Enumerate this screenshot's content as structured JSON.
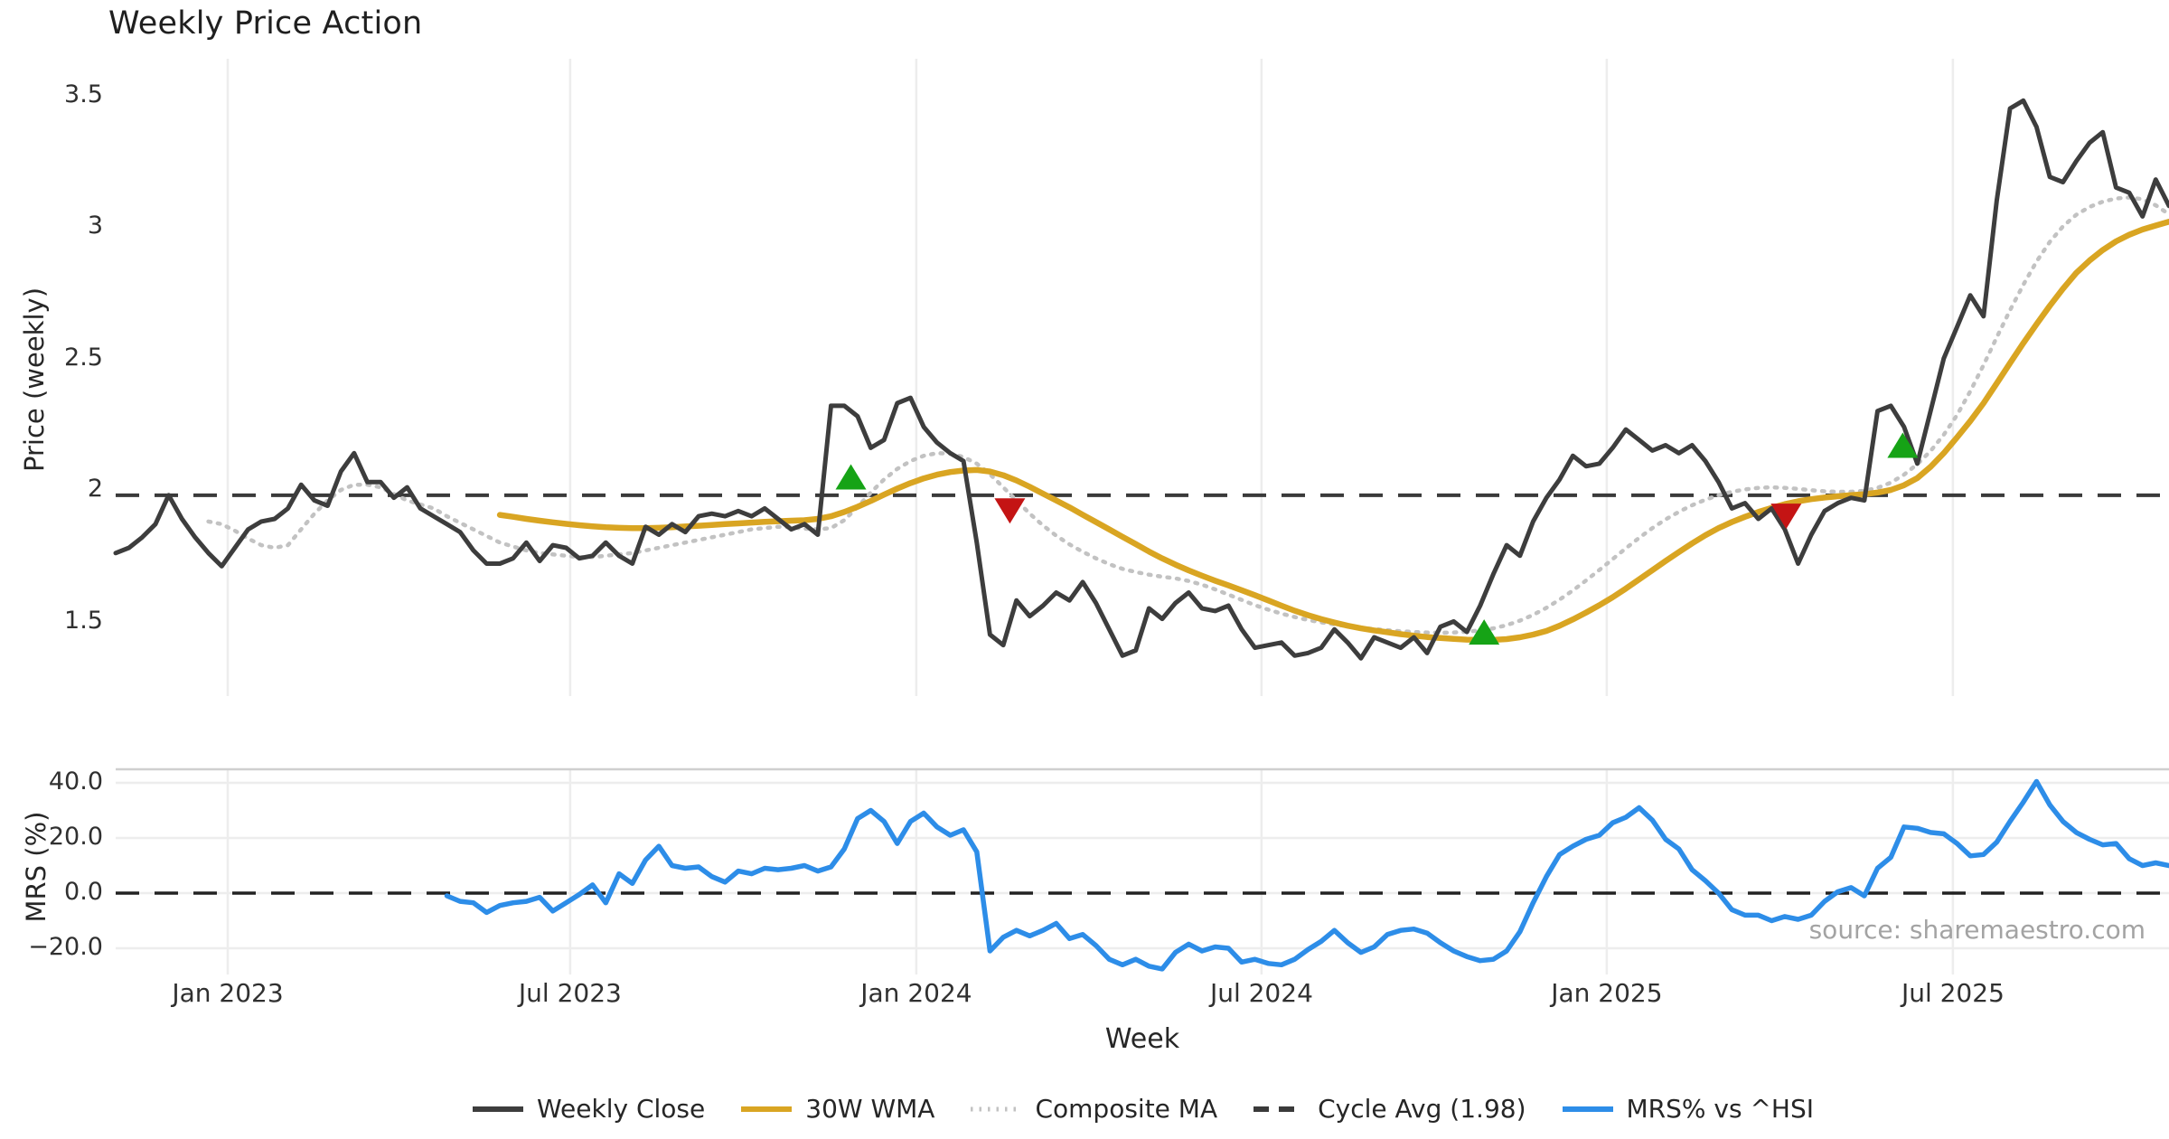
{
  "title": "Weekly Price Action",
  "source_note": "source: sharemaestro.com",
  "colors": {
    "close": "#3d3d3d",
    "wma": "#D9A522",
    "composite": "#c2c2c2",
    "cycle": "#3a3a3a",
    "mrs": "#2D8DE8",
    "buy": "#16A316",
    "sell": "#C41414",
    "grid": "#ededed",
    "panel_border": "#cfcfcf",
    "text": "#262626",
    "muted": "#a3a3a3"
  },
  "legend": [
    {
      "label": "Weekly Close",
      "style": "solid",
      "color": "#3d3d3d"
    },
    {
      "label": "30W WMA",
      "style": "solid",
      "color": "#D9A522"
    },
    {
      "label": "Composite MA",
      "style": "dotted",
      "color": "#c2c2c2"
    },
    {
      "label": "Cycle Avg (1.98)",
      "style": "dashed",
      "color": "#3a3a3a"
    },
    {
      "label": "MRS% vs ^HSI",
      "style": "solid",
      "color": "#2D8DE8"
    }
  ],
  "chart_data": [
    {
      "type": "line",
      "panel": "price",
      "title": "Weekly Price Action",
      "ylabel": "Price (weekly)",
      "ylim": [
        1.2,
        3.6
      ],
      "grid": "vertical-only",
      "cycle_avg": 1.98,
      "yticks": [
        {
          "value": 3.5,
          "label": "3.5"
        },
        {
          "value": 3.0,
          "label": "3"
        },
        {
          "value": 2.5,
          "label": "2.5"
        },
        {
          "value": 2.0,
          "label": "2"
        },
        {
          "value": 1.5,
          "label": "1.5"
        }
      ],
      "series": [
        {
          "name": "Weekly Close",
          "color": "#3d3d3d",
          "start_week": 0,
          "values": [
            1.76,
            1.78,
            1.82,
            1.87,
            1.98,
            1.89,
            1.82,
            1.76,
            1.71,
            1.78,
            1.85,
            1.88,
            1.89,
            1.93,
            2.02,
            1.96,
            1.94,
            2.07,
            2.14,
            2.03,
            2.03,
            1.97,
            2.01,
            1.93,
            1.9,
            1.87,
            1.84,
            1.77,
            1.72,
            1.72,
            1.74,
            1.8,
            1.73,
            1.79,
            1.78,
            1.74,
            1.75,
            1.8,
            1.75,
            1.72,
            1.86,
            1.83,
            1.87,
            1.84,
            1.9,
            1.91,
            1.9,
            1.92,
            1.9,
            1.93,
            1.89,
            1.85,
            1.87,
            1.83,
            2.32,
            2.32,
            2.28,
            2.16,
            2.19,
            2.33,
            2.35,
            2.24,
            2.18,
            2.14,
            2.11,
            1.8,
            1.45,
            1.41,
            1.58,
            1.52,
            1.56,
            1.61,
            1.58,
            1.65,
            1.57,
            1.47,
            1.37,
            1.39,
            1.55,
            1.51,
            1.57,
            1.61,
            1.55,
            1.54,
            1.56,
            1.47,
            1.4,
            1.41,
            1.42,
            1.37,
            1.38,
            1.4,
            1.47,
            1.42,
            1.36,
            1.44,
            1.42,
            1.4,
            1.44,
            1.38,
            1.48,
            1.5,
            1.46,
            1.56,
            1.68,
            1.79,
            1.75,
            1.88,
            1.97,
            2.04,
            2.13,
            2.09,
            2.1,
            2.16,
            2.23,
            2.19,
            2.15,
            2.17,
            2.14,
            2.17,
            2.11,
            2.03,
            1.93,
            1.95,
            1.89,
            1.93,
            1.85,
            1.72,
            1.83,
            1.92,
            1.95,
            1.97,
            1.96,
            2.3,
            2.32,
            2.24,
            2.1,
            2.3,
            2.5,
            2.62,
            2.74,
            2.66,
            3.1,
            3.45,
            3.48,
            3.38,
            3.19,
            3.17,
            3.25,
            3.32,
            3.36,
            3.15,
            3.13,
            3.04,
            3.18,
            3.08
          ]
        },
        {
          "name": "30W WMA",
          "color": "#D9A522",
          "start_week": 29,
          "values": [
            1.905,
            1.898,
            1.89,
            1.883,
            1.877,
            1.871,
            1.866,
            1.862,
            1.858,
            1.856,
            1.855,
            1.855,
            1.856,
            1.858,
            1.861,
            1.864,
            1.867,
            1.87,
            1.873,
            1.876,
            1.879,
            1.881,
            1.883,
            1.885,
            1.89,
            1.9,
            1.916,
            1.936,
            1.958,
            1.982,
            2.005,
            2.026,
            2.044,
            2.058,
            2.068,
            2.074,
            2.076,
            2.07,
            2.056,
            2.036,
            2.012,
            1.986,
            1.96,
            1.934,
            1.906,
            1.878,
            1.85,
            1.822,
            1.794,
            1.766,
            1.74,
            1.716,
            1.694,
            1.674,
            1.655,
            1.637,
            1.619,
            1.6,
            1.58,
            1.56,
            1.541,
            1.524,
            1.509,
            1.496,
            1.484,
            1.474,
            1.466,
            1.459,
            1.452,
            1.446,
            1.441,
            1.437,
            1.434,
            1.431,
            1.43,
            1.43,
            1.433,
            1.44,
            1.45,
            1.464,
            1.484,
            1.508,
            1.534,
            1.562,
            1.592,
            1.625,
            1.66,
            1.695,
            1.73,
            1.764,
            1.797,
            1.828,
            1.855,
            1.878,
            1.898,
            1.916,
            1.932,
            1.946,
            1.957,
            1.965,
            1.971,
            1.976,
            1.98,
            1.984,
            1.99,
            2.0,
            2.018,
            2.045,
            2.088,
            2.14,
            2.2,
            2.262,
            2.33,
            2.405,
            2.482,
            2.558,
            2.63,
            2.7,
            2.765,
            2.825,
            2.872,
            2.912,
            2.945,
            2.97,
            2.99,
            3.005,
            3.02
          ]
        },
        {
          "name": "Composite MA",
          "color": "#c2c2c2",
          "start_week": 7,
          "values": [
            1.88,
            1.87,
            1.845,
            1.815,
            1.79,
            1.78,
            1.79,
            1.85,
            1.91,
            1.96,
            2.0,
            2.02,
            2.02,
            2.01,
            1.985,
            1.96,
            1.945,
            1.93,
            1.9,
            1.875,
            1.85,
            1.825,
            1.8,
            1.785,
            1.77,
            1.76,
            1.755,
            1.75,
            1.745,
            1.745,
            1.75,
            1.755,
            1.76,
            1.77,
            1.78,
            1.79,
            1.8,
            1.81,
            1.82,
            1.83,
            1.84,
            1.85,
            1.855,
            1.86,
            1.858,
            1.853,
            1.85,
            1.855,
            1.885,
            1.935,
            1.99,
            2.04,
            2.08,
            2.11,
            2.13,
            2.14,
            2.138,
            2.125,
            2.1,
            2.06,
            2.01,
            1.96,
            1.91,
            1.865,
            1.826,
            1.793,
            1.765,
            1.74,
            1.718,
            1.7,
            1.688,
            1.678,
            1.67,
            1.664,
            1.654,
            1.64,
            1.622,
            1.602,
            1.582,
            1.562,
            1.545,
            1.53,
            1.517,
            1.506,
            1.497,
            1.489,
            1.482,
            1.476,
            1.471,
            1.467,
            1.463,
            1.46,
            1.458,
            1.457,
            1.458,
            1.461,
            1.466,
            1.474,
            1.486,
            1.503,
            1.525,
            1.552,
            1.583,
            1.618,
            1.656,
            1.696,
            1.737,
            1.778,
            1.818,
            1.855,
            1.888,
            1.917,
            1.942,
            1.963,
            1.98,
            1.993,
            2.002,
            2.008,
            2.01,
            2.008,
            2.004,
            1.999,
            1.995,
            1.993,
            1.993,
            1.997,
            2.008,
            2.028,
            2.058,
            2.098,
            2.148,
            2.21,
            2.285,
            2.375,
            2.475,
            2.58,
            2.683,
            2.78,
            2.868,
            2.943,
            3.002,
            3.046,
            3.076,
            3.096,
            3.108,
            3.112,
            3.105,
            3.082,
            3.048
          ]
        }
      ],
      "signals": {
        "buy": [
          {
            "week": 55.5,
            "value": 2.05
          },
          {
            "week": 103.3,
            "value": 1.46
          },
          {
            "week": 134.9,
            "value": 2.17
          }
        ],
        "sell": [
          {
            "week": 67.5,
            "value": 1.92
          },
          {
            "week": 126.1,
            "value": 1.9
          }
        ]
      }
    },
    {
      "type": "line",
      "panel": "mrs",
      "ylabel": "MRS (%)",
      "ylim": [
        -32,
        45
      ],
      "zero_line_dashed": true,
      "yticks": [
        {
          "value": 40,
          "label": "40.0"
        },
        {
          "value": 20,
          "label": "20.0"
        },
        {
          "value": 0,
          "label": "0.0"
        },
        {
          "value": -20,
          "label": "−20.0"
        }
      ],
      "x_axis": {
        "label": "Week",
        "ticks": [
          {
            "week": 8.46,
            "label": "Jan 2023"
          },
          {
            "week": 34.31,
            "label": "Jul 2023"
          },
          {
            "week": 60.44,
            "label": "Jan 2024"
          },
          {
            "week": 86.5,
            "label": "Jul 2024"
          },
          {
            "week": 112.56,
            "label": "Jan 2025"
          },
          {
            "week": 138.69,
            "label": "Jul 2025"
          }
        ]
      },
      "series": [
        {
          "name": "MRS% vs ^HSI",
          "color": "#2D8DE8",
          "start_week": 25,
          "values": [
            -1,
            -3,
            -3.5,
            -7,
            -4.5,
            -3.5,
            -3,
            -1.5,
            -6.5,
            -3.5,
            -0.5,
            3,
            -3.5,
            7,
            3.5,
            12,
            17,
            10,
            9,
            9.5,
            6,
            4,
            8,
            7,
            9,
            8.5,
            9,
            10,
            8,
            9.5,
            16,
            27,
            30,
            26,
            18,
            26,
            29,
            24,
            21,
            23,
            15,
            -21,
            -16,
            -13.5,
            -15.5,
            -13.5,
            -11,
            -16.5,
            -15,
            -19,
            -24,
            -26,
            -24,
            -26.5,
            -27.5,
            -21.5,
            -18.5,
            -21,
            -19.5,
            -20,
            -25,
            -24,
            -25.5,
            -26,
            -24,
            -20.5,
            -17.5,
            -13.5,
            -18,
            -21.5,
            -19.5,
            -15,
            -13.5,
            -13,
            -14.5,
            -18,
            -21,
            -23,
            -24.5,
            -24,
            -21,
            -14,
            -3.5,
            6,
            14,
            17,
            19.5,
            21,
            25.5,
            27.5,
            31,
            26.5,
            19.5,
            16,
            8.5,
            4.5,
            0,
            -6,
            -8,
            -8,
            -10,
            -8.5,
            -9.5,
            -8,
            -3,
            0.5,
            2,
            -1,
            9,
            13,
            24,
            23.5,
            22,
            21.5,
            18,
            13.5,
            14,
            18.5,
            26,
            33,
            40.5,
            32,
            26,
            22,
            19.5,
            17.5,
            18,
            12.5,
            10,
            11,
            10
          ]
        }
      ]
    }
  ]
}
